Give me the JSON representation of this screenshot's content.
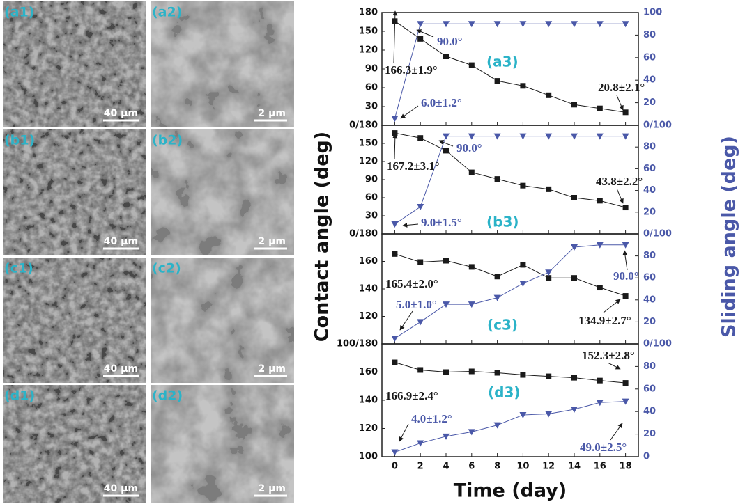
{
  "images": [
    {
      "label": "(a1)",
      "scale_bar": "40 µm"
    },
    {
      "label": "(a2)",
      "scale_bar": "2 µm"
    },
    {
      "label": "(b1)",
      "scale_bar": "40 µm"
    },
    {
      "label": "(b2)",
      "scale_bar": "2 µm"
    },
    {
      "label": "(c1)",
      "scale_bar": "40 µm"
    },
    {
      "label": "(c2)",
      "scale_bar": "2 µm"
    },
    {
      "label": "(d1)",
      "scale_bar": "40 µm"
    },
    {
      "label": "(d2)",
      "scale_bar": "2 µm"
    }
  ],
  "figure": {
    "xlabel": "Time (day)",
    "ylabel": "Contact angle (deg)",
    "y2label": "Sliding angle (deg)"
  },
  "chart_data": [
    {
      "type": "line",
      "label": "(a3)",
      "x": [
        0,
        2,
        4,
        6,
        8,
        10,
        12,
        14,
        16,
        18
      ],
      "xlim": [
        -1,
        19
      ],
      "xticks": [
        0,
        2,
        4,
        6,
        8,
        10,
        12,
        14,
        16,
        18
      ],
      "ylim": [
        0,
        180
      ],
      "yticks": [
        {
          "value": 0,
          "label": "0/180"
        },
        30,
        60,
        90,
        120,
        150,
        180
      ],
      "y2lim": [
        0,
        100
      ],
      "y2ticks": [
        {
          "value": 0,
          "label": "0/100"
        },
        20,
        40,
        60,
        80,
        100
      ],
      "series": [
        {
          "color": "#1a1a1a",
          "marker": "square",
          "values": [
            166.3,
            138,
            110,
            96,
            71,
            63,
            48,
            33,
            27,
            20.8
          ]
        },
        {
          "color": "#4a58a8",
          "marker": "triangle-down",
          "axis": "y2",
          "values": [
            6.0,
            90,
            90,
            90,
            90,
            90,
            90,
            90,
            90,
            90
          ]
        }
      ],
      "annotations": [
        {
          "text": "166.3±1.9°",
          "color": "#1a1a1a"
        },
        {
          "text": "20.8±2.1°",
          "color": "#1a1a1a"
        },
        {
          "text": "90.0°",
          "color": "#4a58a8"
        },
        {
          "text": "6.0±1.2°",
          "color": "#4a58a8"
        }
      ]
    },
    {
      "type": "line",
      "label": "(b3)",
      "x": [
        0,
        2,
        4,
        6,
        8,
        10,
        12,
        14,
        16,
        18
      ],
      "xlim": [
        -1,
        19
      ],
      "xticks": [
        0,
        2,
        4,
        6,
        8,
        10,
        12,
        14,
        16,
        18
      ],
      "ylim": [
        0,
        180
      ],
      "yticks": [
        {
          "value": 0,
          "label": "0/180"
        },
        30,
        60,
        90,
        120,
        150
      ],
      "y2lim": [
        0,
        100
      ],
      "y2ticks": [
        {
          "value": 0,
          "label": "0/100"
        },
        20,
        40,
        60,
        80
      ],
      "series": [
        {
          "color": "#1a1a1a",
          "marker": "square",
          "values": [
            167.2,
            159,
            138,
            102,
            91,
            80,
            74,
            60,
            55,
            43.8
          ]
        },
        {
          "color": "#4a58a8",
          "marker": "triangle-down",
          "axis": "y2",
          "values": [
            9.0,
            25,
            90,
            90,
            90,
            90,
            90,
            90,
            90,
            90
          ]
        }
      ],
      "annotations": [
        {
          "text": "167.2±3.1°",
          "color": "#1a1a1a"
        },
        {
          "text": "43.8±2.2°",
          "color": "#1a1a1a"
        },
        {
          "text": "90.0°",
          "color": "#4a58a8"
        },
        {
          "text": "9.0±1.5°",
          "color": "#4a58a8"
        }
      ]
    },
    {
      "type": "line",
      "label": "(c3)",
      "x": [
        0,
        2,
        4,
        6,
        8,
        10,
        12,
        14,
        16,
        18
      ],
      "xlim": [
        -1,
        19
      ],
      "xticks": [
        0,
        2,
        4,
        6,
        8,
        10,
        12,
        14,
        16,
        18
      ],
      "ylim": [
        100,
        180
      ],
      "yticks": [
        {
          "value": 100,
          "label": "100/180"
        },
        120,
        140,
        160
      ],
      "y2lim": [
        0,
        100
      ],
      "y2ticks": [
        {
          "value": 0,
          "label": "0/100"
        },
        20,
        40,
        60,
        80
      ],
      "series": [
        {
          "color": "#1a1a1a",
          "marker": "square",
          "values": [
            165.4,
            159.5,
            160.5,
            156,
            149,
            157.5,
            148,
            148,
            141,
            134.9
          ]
        },
        {
          "color": "#4a58a8",
          "marker": "triangle-down",
          "axis": "y2",
          "values": [
            5.0,
            20,
            36,
            36,
            42,
            55,
            65,
            88,
            90,
            90
          ]
        }
      ],
      "annotations": [
        {
          "text": "165.4±2.0°",
          "color": "#1a1a1a"
        },
        {
          "text": "134.9±2.7°",
          "color": "#1a1a1a"
        },
        {
          "text": "90.0°",
          "color": "#4a58a8"
        },
        {
          "text": "5.0±1.0°",
          "color": "#4a58a8"
        }
      ]
    },
    {
      "type": "line",
      "label": "(d3)",
      "x": [
        0,
        2,
        4,
        6,
        8,
        10,
        12,
        14,
        16,
        18
      ],
      "xlim": [
        -1,
        19
      ],
      "xticks": [
        0,
        2,
        4,
        6,
        8,
        10,
        12,
        14,
        16,
        18
      ],
      "ylim": [
        100,
        180
      ],
      "yticks": [
        100,
        120,
        140,
        160
      ],
      "y2lim": [
        0,
        100
      ],
      "y2ticks": [
        0,
        20,
        40,
        60,
        80
      ],
      "series": [
        {
          "color": "#1a1a1a",
          "marker": "square",
          "values": [
            166.9,
            161.5,
            160,
            160.5,
            159.5,
            158,
            157,
            156,
            154,
            152.3
          ]
        },
        {
          "color": "#4a58a8",
          "marker": "triangle-down",
          "axis": "y2",
          "values": [
            4.0,
            12,
            18,
            22,
            28,
            37,
            38,
            42,
            48,
            49.0
          ]
        }
      ],
      "annotations": [
        {
          "text": "166.9±2.4°",
          "color": "#1a1a1a"
        },
        {
          "text": "152.3±2.8°",
          "color": "#1a1a1a"
        },
        {
          "text": "49.0±2.5°",
          "color": "#4a58a8"
        },
        {
          "text": "4.0±1.2°",
          "color": "#4a58a8"
        }
      ]
    }
  ]
}
